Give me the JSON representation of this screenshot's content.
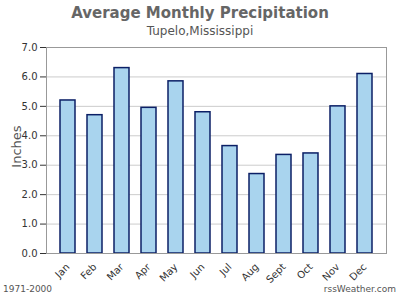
{
  "chart_data": {
    "type": "bar",
    "title": "Average Monthly Precipitation",
    "subtitle": "Tupelo,Mississippi",
    "y_label": "Inches",
    "categories": [
      "Jan",
      "Feb",
      "Mar",
      "Apr",
      "May",
      "Jun",
      "Jul",
      "Aug",
      "Sept",
      "Oct",
      "Nov",
      "Dec"
    ],
    "values": [
      5.2,
      4.7,
      6.3,
      4.95,
      5.85,
      4.8,
      3.65,
      2.7,
      3.35,
      3.4,
      5.0,
      6.1
    ],
    "color": "#a9d4ee",
    "ylim": [
      0,
      7
    ],
    "yticks": [
      {
        "value": 0,
        "label": "0.0"
      },
      {
        "value": 1,
        "label": "1.0"
      },
      {
        "value": 2,
        "label": "2.0"
      },
      {
        "value": 3,
        "label": "3.0"
      },
      {
        "value": 4,
        "label": "4.0"
      },
      {
        "value": 5,
        "label": "5.0"
      },
      {
        "value": 6,
        "label": "6.0"
      },
      {
        "value": 7,
        "label": "7.0"
      }
    ],
    "grid": true,
    "annotations": [
      "1971-2000",
      "rssWeather.com"
    ]
  }
}
